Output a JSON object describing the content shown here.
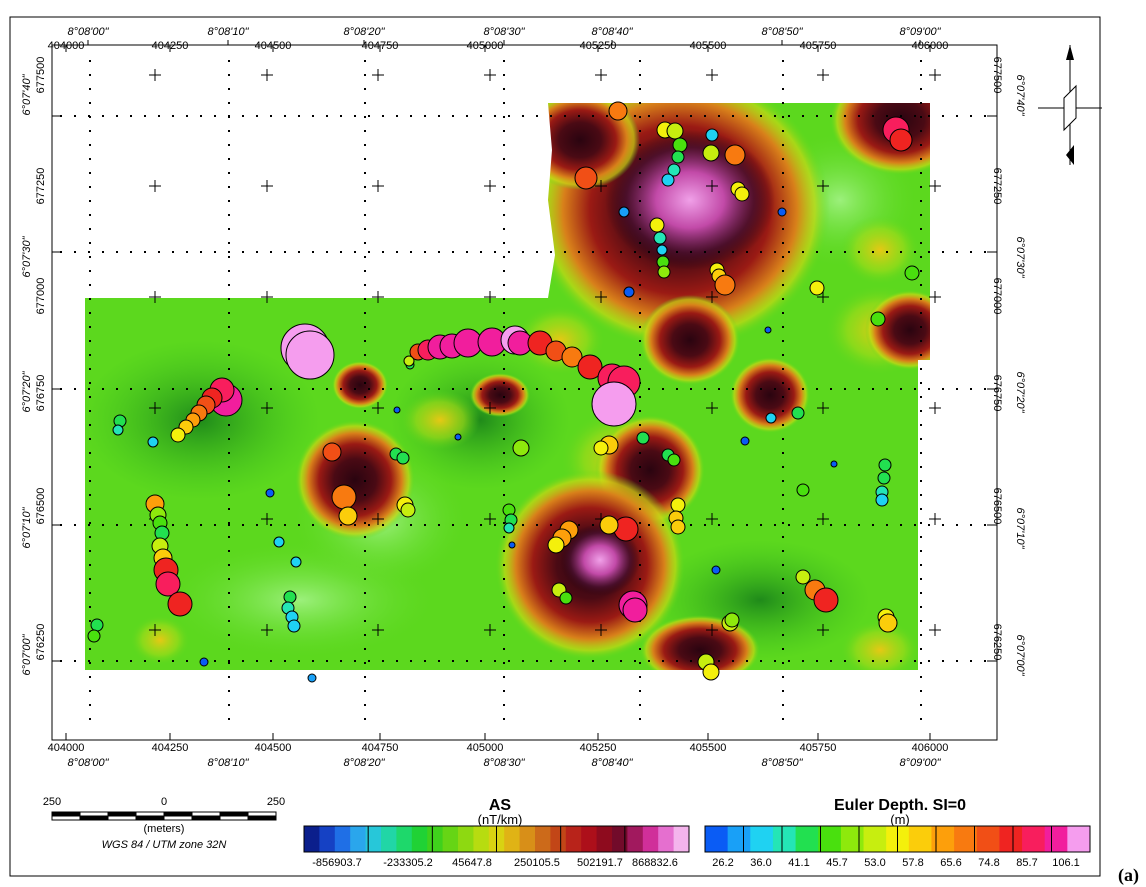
{
  "map": {
    "easting_labels": [
      "404000",
      "404250",
      "404500",
      "404750",
      "405000",
      "405250",
      "405500",
      "405750",
      "406000"
    ],
    "northing_labels": [
      "677500",
      "677250",
      "677000",
      "676750",
      "676500",
      "676250"
    ],
    "longitude_labels": [
      "8°08'00\"",
      "8°08'10\"",
      "8°08'20\"",
      "8°08'30\"",
      "8°08'40\"",
      "8°08'50\"",
      "8°09'00\""
    ],
    "latitude_labels": [
      "6°07'40\"",
      "6°07'30\"",
      "6°07'20\"",
      "6°07'10\"",
      "6°07'00\""
    ]
  },
  "scale_bar": {
    "ticks": [
      "250",
      "0",
      "250"
    ],
    "unit": "(meters)",
    "crs": "WGS 84 / UTM zone 32N"
  },
  "legend_as": {
    "title": "AS",
    "unit": "(nT/km)",
    "tick_labels": [
      "-856903.7",
      "-233305.2",
      "45647.8",
      "250105.5",
      "502191.7",
      "868832.6"
    ],
    "colors": [
      "#0b1f8c",
      "#1541c4",
      "#1f6fe6",
      "#2aa6ec",
      "#27c7d9",
      "#21d6a6",
      "#1ed86b",
      "#20d235",
      "#3fd11c",
      "#66d515",
      "#8ed911",
      "#b7dc10",
      "#d9d212",
      "#e0b315",
      "#d88f18",
      "#cc6a1a",
      "#c24617",
      "#b8231a",
      "#ad0f1a",
      "#8e0b1e",
      "#720b2a",
      "#a1195e",
      "#d02f9a",
      "#e56fcf",
      "#f4b4ec"
    ]
  },
  "legend_euler": {
    "title": "Euler Depth. SI=0",
    "unit": "(m)",
    "tick_labels": [
      "26.2",
      "36.0",
      "41.1",
      "45.7",
      "53.0",
      "57.8",
      "65.6",
      "74.8",
      "85.7",
      "106.1"
    ],
    "colors": [
      "#0a5cf5",
      "#19a0f7",
      "#1fd2f2",
      "#24e5b6",
      "#22e050",
      "#49e00e",
      "#8ee90c",
      "#c7ee0f",
      "#f4f00c",
      "#fbcd0b",
      "#fd9f0b",
      "#f87a10",
      "#f14f16",
      "#ef2421",
      "#f81e5d",
      "#f11e9d",
      "#f59dee"
    ]
  },
  "panel_label": "(a)"
}
